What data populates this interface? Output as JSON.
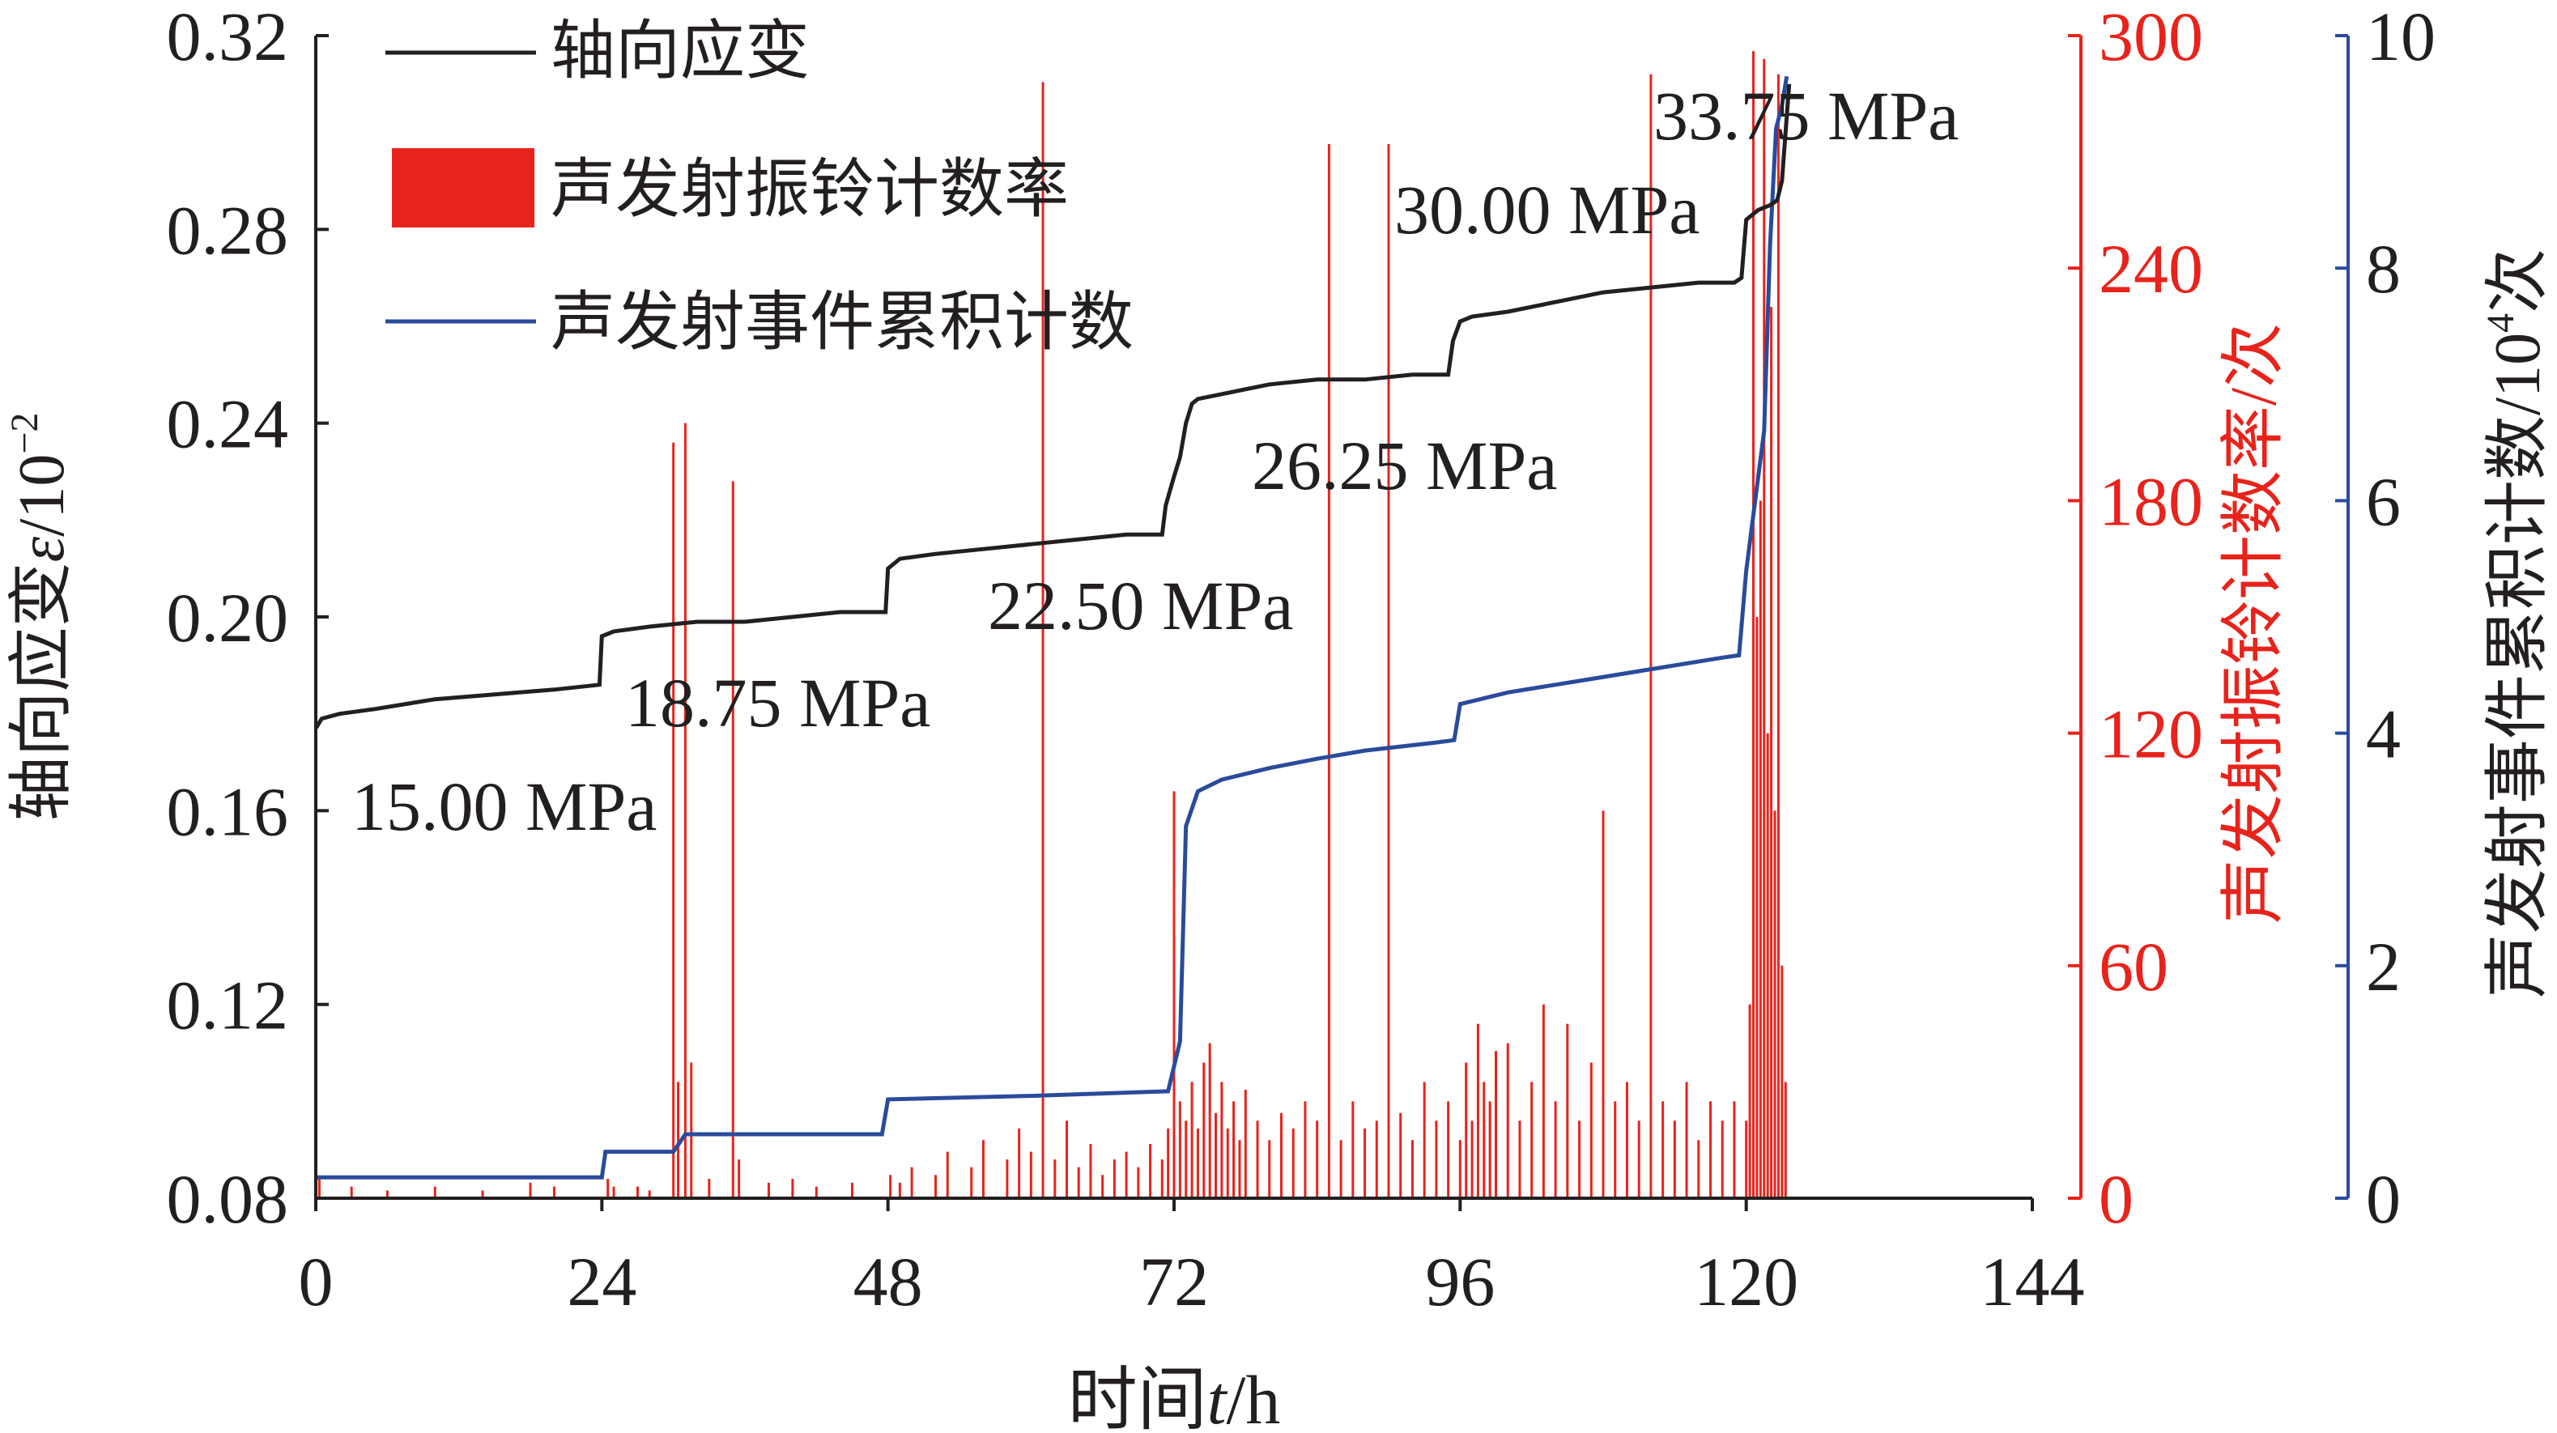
{
  "chart_data": {
    "type": "line",
    "x_axis": {
      "label_prefix": "时间",
      "label_var": "t",
      "label_suffix": "/h",
      "range": [
        0,
        144
      ],
      "ticks": [
        "0",
        "24",
        "48",
        "72",
        "96",
        "120",
        "144"
      ]
    },
    "y_left": {
      "label_prefix": "轴向应变",
      "label_var": "ε",
      "label_suffix": "/10",
      "label_exp": "−2",
      "range": [
        0.08,
        0.32
      ],
      "ticks": [
        "0.08",
        "0.12",
        "0.16",
        "0.20",
        "0.24",
        "0.28",
        "0.32"
      ]
    },
    "y_right1": {
      "label": "声发射振铃计数率/次",
      "range": [
        0,
        300
      ],
      "ticks": [
        "0",
        "60",
        "120",
        "180",
        "240",
        "300"
      ]
    },
    "y_right2": {
      "label_prefix": "声发射事件累积计数/10",
      "label_exp": "4",
      "label_suffix": "次",
      "range": [
        0,
        10
      ],
      "ticks": [
        "0",
        "2",
        "4",
        "6",
        "8",
        "10"
      ]
    },
    "legend": {
      "placement": "top-left",
      "items": [
        "轴向应变",
        "声发射振铃计数率",
        "声发射事件累积计数"
      ]
    },
    "colors": {
      "strain": "#231f20",
      "ring_rate": "#e8231b",
      "cumulative": "#2a4b9b",
      "right1_axis": "#e8231b",
      "right2_axis": "#2a4b9b"
    },
    "annotations": [
      "15.00 MPa",
      "18.75 MPa",
      "22.50 MPa",
      "26.25 MPa",
      "30.00 MPa",
      "33.75 MPa"
    ],
    "series": [
      {
        "name": "轴向应变",
        "axis": "left",
        "x": [
          0,
          0.5,
          2,
          5,
          10,
          15,
          20,
          23.8,
          24,
          25,
          28,
          32,
          36,
          40,
          44,
          47.8,
          48,
          49,
          52,
          56,
          60,
          64,
          68,
          71,
          71.3,
          72,
          72.5,
          73,
          73.5,
          74,
          76,
          80,
          84,
          88,
          92,
          95,
          95.4,
          96,
          97,
          100,
          104,
          108,
          112,
          116,
          119,
          119.6,
          120,
          121,
          122,
          122.6,
          123,
          123.6
        ],
        "y": [
          0.177,
          0.179,
          0.18,
          0.181,
          0.183,
          0.184,
          0.185,
          0.186,
          0.196,
          0.197,
          0.198,
          0.199,
          0.199,
          0.2,
          0.201,
          0.201,
          0.21,
          0.212,
          0.213,
          0.214,
          0.215,
          0.216,
          0.217,
          0.217,
          0.223,
          0.229,
          0.233,
          0.24,
          0.244,
          0.245,
          0.246,
          0.248,
          0.249,
          0.249,
          0.25,
          0.25,
          0.257,
          0.261,
          0.262,
          0.263,
          0.265,
          0.267,
          0.268,
          0.269,
          0.269,
          0.27,
          0.282,
          0.284,
          0.285,
          0.286,
          0.29,
          0.31
        ]
      },
      {
        "name": "声发射事件累积计数",
        "axis": "right2",
        "x": [
          0,
          24,
          24.3,
          30,
          31,
          47.5,
          48,
          60,
          71.5,
          72.5,
          73,
          74,
          76,
          80,
          84,
          88,
          94,
          95.5,
          96,
          100,
          106,
          112,
          118,
          119.4,
          120,
          121,
          121.5,
          122,
          122.5,
          123,
          123.4
        ],
        "y": [
          0.18,
          0.18,
          0.4,
          0.4,
          0.55,
          0.55,
          0.85,
          0.88,
          0.92,
          1.35,
          3.2,
          3.5,
          3.6,
          3.7,
          3.78,
          3.85,
          3.92,
          3.94,
          4.25,
          4.35,
          4.45,
          4.55,
          4.65,
          4.67,
          5.4,
          6.2,
          6.6,
          8.2,
          9.2,
          9.4,
          9.65
        ]
      },
      {
        "name": "声发射振铃计数率",
        "axis": "right1",
        "x": [
          0,
          0.3,
          3,
          6,
          10,
          14,
          18,
          20,
          24.5,
          25,
          27,
          28,
          30,
          30.4,
          31,
          31.5,
          33,
          35,
          35.5,
          38,
          40,
          42,
          45,
          48.2,
          49,
          50,
          52,
          53,
          55,
          56,
          58,
          59,
          60,
          61,
          62,
          63,
          64,
          65,
          66,
          67,
          68,
          69,
          70,
          71,
          71.5,
          72,
          72.5,
          73,
          73.5,
          74,
          74.5,
          75,
          75.5,
          76,
          76.5,
          77,
          77.5,
          78,
          79,
          80,
          81,
          82,
          83,
          84,
          85,
          86,
          87,
          88,
          89,
          90,
          91,
          92,
          93,
          94,
          95,
          96,
          96.5,
          97,
          97.5,
          98,
          98.5,
          99,
          100,
          101,
          102,
          103,
          104,
          105,
          106,
          107,
          108,
          109,
          110,
          111,
          112,
          113,
          114,
          115,
          116,
          117,
          118,
          119,
          120,
          120.3,
          120.6,
          120.9,
          121.2,
          121.5,
          121.8,
          122.1,
          122.4,
          122.7,
          123,
          123.3
        ],
        "y": [
          20,
          5,
          3,
          2,
          3,
          2,
          4,
          3,
          5,
          3,
          3,
          2,
          195,
          30,
          200,
          35,
          5,
          185,
          10,
          4,
          5,
          3,
          4,
          6,
          4,
          8,
          6,
          12,
          8,
          15,
          10,
          18,
          12,
          288,
          10,
          20,
          8,
          14,
          6,
          10,
          12,
          8,
          14,
          10,
          18,
          105,
          25,
          20,
          30,
          18,
          35,
          40,
          22,
          30,
          18,
          25,
          15,
          28,
          20,
          15,
          22,
          18,
          25,
          20,
          272,
          15,
          25,
          18,
          20,
          272,
          22,
          15,
          30,
          20,
          25,
          15,
          35,
          20,
          45,
          30,
          25,
          38,
          40,
          20,
          30,
          50,
          25,
          45,
          20,
          35,
          100,
          25,
          30,
          20,
          290,
          25,
          20,
          30,
          15,
          25,
          20,
          25,
          20,
          50,
          296,
          150,
          180,
          294,
          120,
          230,
          100,
          290,
          60,
          30
        ]
      }
    ]
  }
}
